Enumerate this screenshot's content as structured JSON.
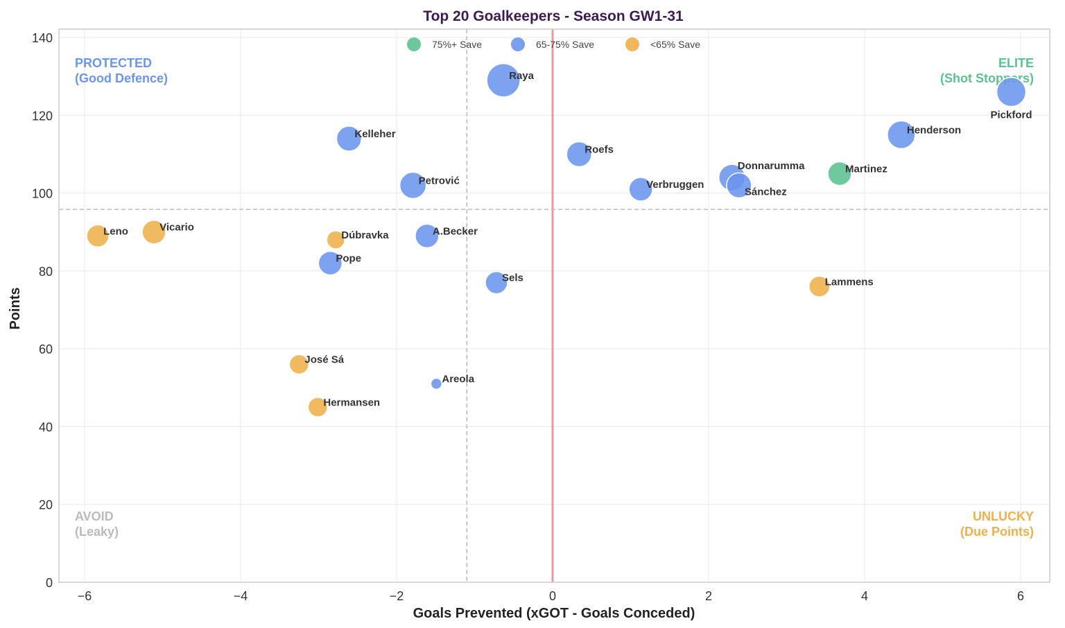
{
  "chart_data": {
    "type": "scatter",
    "title": "Top 20 Goalkeepers - Season GW1-31",
    "xlabel": "Goals Prevented (xGOT - Goals Conceded)",
    "ylabel": "Points",
    "xlim": [
      -6.35,
      6.35
    ],
    "ylim": [
      0,
      142
    ],
    "xticks": [
      -6,
      -4,
      -2,
      0,
      2,
      4,
      6
    ],
    "xtick_labels": [
      "−6",
      "−4",
      "−2",
      "0",
      "2",
      "4",
      "6"
    ],
    "yticks": [
      0,
      20,
      40,
      60,
      80,
      100,
      120,
      140
    ],
    "ytick_labels": [
      "0",
      "20",
      "40",
      "60",
      "80",
      "100",
      "120",
      "140"
    ],
    "grid": true,
    "legend_position": "top-center",
    "legend": [
      {
        "key": "high",
        "label": "75%+ Save",
        "color": "#5cc291"
      },
      {
        "key": "mid",
        "label": "65-75% Save",
        "color": "#6b95ee"
      },
      {
        "key": "low",
        "label": "<65% Save",
        "color": "#eeb04a"
      }
    ],
    "reference_lines": {
      "x_zero": {
        "value": 0,
        "color": "#e99a9a"
      },
      "x_mean": {
        "value": -1.1,
        "color": "#bbbbbb"
      },
      "y_mean": {
        "value": 95.8,
        "color": "#bbbbbb"
      }
    },
    "quadrant_labels": [
      {
        "pos": "top-left",
        "line1": "PROTECTED",
        "line2": "(Good Defence)",
        "color": "#6b95ee"
      },
      {
        "pos": "top-right",
        "line1": "ELITE",
        "line2": "(Shot Stoppers)",
        "color": "#5cc291"
      },
      {
        "pos": "bottom-left",
        "line1": "AVOID",
        "line2": "(Leaky)",
        "color": "#bbbbbb"
      },
      {
        "pos": "bottom-right",
        "line1": "UNLUCKY",
        "line2": "(Due Points)",
        "color": "#eeb04a"
      }
    ],
    "points": [
      {
        "name": "Raya",
        "x": -0.63,
        "y": 129,
        "size": 24,
        "group": "mid"
      },
      {
        "name": "Pickford",
        "x": 5.88,
        "y": 126,
        "size": 21,
        "group": "mid"
      },
      {
        "name": "Kelleher",
        "x": -2.61,
        "y": 114,
        "size": 18,
        "group": "mid"
      },
      {
        "name": "Henderson",
        "x": 4.47,
        "y": 115,
        "size": 20,
        "group": "mid"
      },
      {
        "name": "Roefs",
        "x": 0.34,
        "y": 110,
        "size": 18,
        "group": "mid"
      },
      {
        "name": "Petrović",
        "x": -1.79,
        "y": 102,
        "size": 19,
        "group": "mid"
      },
      {
        "name": "Donnarumma",
        "x": 2.3,
        "y": 104,
        "size": 19,
        "group": "mid"
      },
      {
        "name": "Sánchez",
        "x": 2.39,
        "y": 102,
        "size": 18,
        "group": "mid"
      },
      {
        "name": "Martinez",
        "x": 3.68,
        "y": 105,
        "size": 17,
        "group": "high"
      },
      {
        "name": "Verbruggen",
        "x": 1.13,
        "y": 101,
        "size": 17,
        "group": "mid"
      },
      {
        "name": "Leno",
        "x": -5.83,
        "y": 89,
        "size": 16,
        "group": "low"
      },
      {
        "name": "Vicario",
        "x": -5.11,
        "y": 90,
        "size": 17,
        "group": "low"
      },
      {
        "name": "Dúbravka",
        "x": -2.78,
        "y": 88,
        "size": 13,
        "group": "low"
      },
      {
        "name": "A.Becker",
        "x": -1.61,
        "y": 89,
        "size": 17,
        "group": "mid"
      },
      {
        "name": "Pope",
        "x": -2.85,
        "y": 82,
        "size": 17,
        "group": "mid"
      },
      {
        "name": "Sels",
        "x": -0.72,
        "y": 77,
        "size": 16,
        "group": "mid"
      },
      {
        "name": "Lammens",
        "x": 3.42,
        "y": 76,
        "size": 15,
        "group": "low"
      },
      {
        "name": "José Sá",
        "x": -3.25,
        "y": 56,
        "size": 14,
        "group": "low"
      },
      {
        "name": "Areola",
        "x": -1.49,
        "y": 51,
        "size": 8,
        "group": "mid"
      },
      {
        "name": "Hermansen",
        "x": -3.01,
        "y": 45,
        "size": 14,
        "group": "low"
      }
    ]
  }
}
